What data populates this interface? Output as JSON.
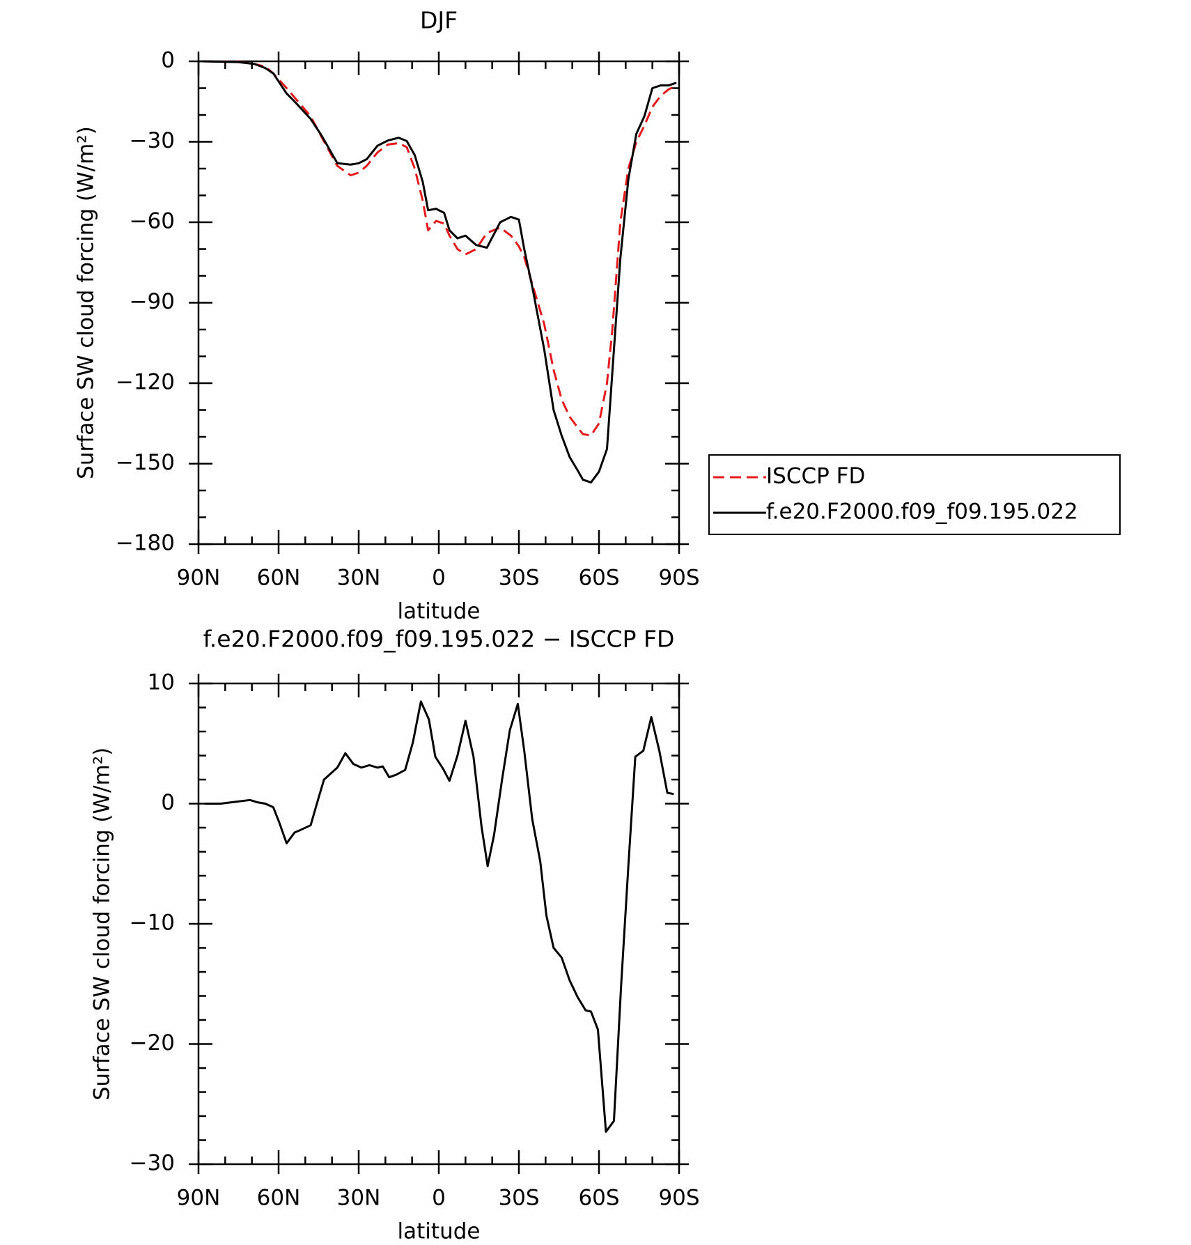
{
  "chart_data": [
    {
      "type": "line",
      "title": "DJF",
      "xlabel": "latitude",
      "ylabel": "Surface SW cloud forcing (W/m²)",
      "x": [
        88.6,
        75,
        69,
        65,
        62,
        57,
        54,
        48,
        44,
        38,
        33,
        30,
        27,
        23,
        19,
        15,
        12,
        9,
        6,
        4,
        1,
        -2,
        -4,
        -7,
        -10,
        -14,
        -18,
        -23,
        -27,
        -30,
        -32,
        -35,
        -39.5,
        -43,
        -46,
        -49,
        -52,
        -54,
        -57,
        -60,
        -63,
        -65,
        -68,
        -71,
        -74,
        -77,
        -80,
        -83,
        -86,
        -89
      ],
      "series": [
        {
          "name": "ISCCP FD",
          "color": "#e41a1c",
          "dashed": true,
          "values": [
            0,
            -0.2,
            -1,
            -2,
            -4.5,
            -10,
            -13.5,
            -20.5,
            -28,
            -39,
            -42.5,
            -41.5,
            -39,
            -34,
            -31,
            -30.5,
            -32,
            -40,
            -52,
            -63,
            -59.5,
            -60.5,
            -65,
            -70,
            -72,
            -70,
            -64,
            -62,
            -65,
            -69,
            -73,
            -83,
            -98,
            -115,
            -126,
            -132.5,
            -136.5,
            -139,
            -139.5,
            -135,
            -120,
            -100,
            -60,
            -40,
            -30,
            -24,
            -17,
            -13,
            -10.5,
            -9
          ]
        },
        {
          "name": "f.e20.F2000.f09_f09.195.022",
          "color": "#000000",
          "dashed": false,
          "values": [
            0,
            -0.3,
            -1,
            -2.5,
            -4.5,
            -12,
            -15,
            -21.5,
            -27.5,
            -38,
            -38.5,
            -38,
            -36.5,
            -31.5,
            -29.5,
            -28.5,
            -29.7,
            -35,
            -45,
            -55.5,
            -55,
            -56.5,
            -63,
            -66,
            -65,
            -68.5,
            -69.5,
            -60,
            -58,
            -59,
            -70,
            -84,
            -107.5,
            -130,
            -139.5,
            -147.5,
            -152.5,
            -156,
            -157,
            -153,
            -144.5,
            -116,
            -73.5,
            -44,
            -27,
            -20.5,
            -10,
            -9,
            -9,
            -8
          ]
        }
      ],
      "xlim": [
        90,
        -90
      ],
      "xticks": [
        {
          "value": 90,
          "label": "90N"
        },
        {
          "value": 60,
          "label": "60N"
        },
        {
          "value": 30,
          "label": "30N"
        },
        0,
        {
          "value": -30,
          "label": "30S"
        },
        {
          "value": -60,
          "label": "60S"
        },
        {
          "value": -90,
          "label": "90S"
        }
      ],
      "ylim": [
        -180,
        0
      ],
      "yticks": [
        0,
        {
          "value": -30,
          "label": "−30"
        },
        {
          "value": -60,
          "label": "−60"
        },
        {
          "value": -90,
          "label": "−90"
        },
        {
          "value": -120,
          "label": "−120"
        },
        {
          "value": -150,
          "label": "−150"
        },
        {
          "value": -180,
          "label": "−180"
        }
      ],
      "legend": "right"
    },
    {
      "type": "line",
      "title": "f.e20.F2000.f09_f09.195.022 − ISCCP FD",
      "xlabel": "latitude",
      "ylabel": "Surface SW cloud forcing (W/m²)",
      "x": [
        87.6,
        81.7,
        78,
        70.7,
        67.7,
        65,
        62,
        59.7,
        57,
        54,
        51.9,
        48,
        45,
        43,
        40,
        38,
        35,
        32,
        29,
        26,
        23,
        21,
        18.6,
        16,
        12.6,
        9.7,
        6.7,
        3.7,
        1.3,
        -1.6,
        -4,
        -7,
        -10,
        -13,
        -16,
        -18.3,
        -20.7,
        -23.7,
        -26.6,
        -29.6,
        -32,
        -35,
        -38,
        -40.3,
        -43,
        -46,
        -49,
        -52,
        -55,
        -57,
        -59.6,
        -62.6,
        -65.6,
        -68.3,
        -71,
        -73.6,
        -76.6,
        -79.6,
        -82.6,
        -85.6,
        -88
      ],
      "series": [
        {
          "color": "#000000",
          "dashed": false,
          "values": [
            0,
            0,
            0.1,
            0.3,
            0.1,
            0,
            -0.3,
            -1.6,
            -3.3,
            -2.4,
            -2.2,
            -1.8,
            0.5,
            2.0,
            2.6,
            3.0,
            4.2,
            3.3,
            3.0,
            3.2,
            3.0,
            3.1,
            2.2,
            2.4,
            2.8,
            5.1,
            8.5,
            7.0,
            3.9,
            2.9,
            1.9,
            4.0,
            6.9,
            3.9,
            -1.9,
            -5.2,
            -2.6,
            2.0,
            6.1,
            8.3,
            4.4,
            -1.3,
            -4.8,
            -9.3,
            -12.0,
            -12.8,
            -14.7,
            -16.1,
            -17.2,
            -17.3,
            -18.8,
            -27.3,
            -26.4,
            -15.1,
            -5.2,
            3.9,
            4.4,
            7.2,
            4.4,
            0.9,
            0.8
          ]
        }
      ],
      "xlim": [
        90,
        -90
      ],
      "xticks": [
        {
          "value": 90,
          "label": "90N"
        },
        {
          "value": 60,
          "label": "60N"
        },
        {
          "value": 30,
          "label": "30N"
        },
        0,
        {
          "value": -30,
          "label": "30S"
        },
        {
          "value": -60,
          "label": "60S"
        },
        {
          "value": -90,
          "label": "90S"
        }
      ],
      "ylim": [
        -30,
        10
      ],
      "yticks": [
        10,
        0,
        {
          "value": -10,
          "label": "−10"
        },
        {
          "value": -20,
          "label": "−20"
        },
        {
          "value": -30,
          "label": "−30"
        }
      ]
    }
  ]
}
